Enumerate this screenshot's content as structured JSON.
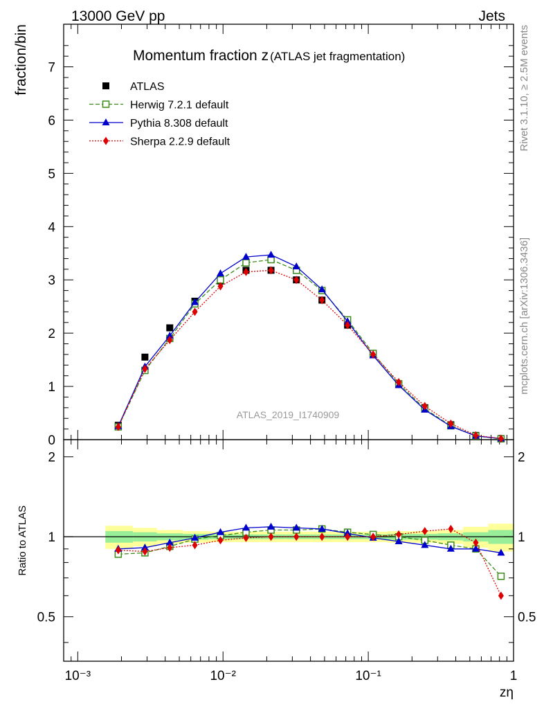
{
  "header": {
    "left": "13000 GeV pp",
    "right": "Jets"
  },
  "side_labels": {
    "rivet": "Rivet 3.1.10, ≥ 2.5M events",
    "mcplots": "mcplots.cern.ch [arXiv:1306.3436]"
  },
  "chart_data": [
    {
      "type": "scatter",
      "title_main": "Momentum fraction z",
      "title_sub": "(ATLAS jet fragmentation)",
      "ylabel": "fraction/bin",
      "analysis_label": "ATLAS_2019_I1740909",
      "xscale": "log",
      "xlim": [
        0.0008,
        1.0
      ],
      "ylim": [
        0,
        7.8
      ],
      "yticks": [
        0,
        1,
        2,
        3,
        4,
        5,
        6,
        7
      ],
      "legend_position": "top-left",
      "x": [
        0.0019,
        0.0029,
        0.0043,
        0.0064,
        0.0096,
        0.0144,
        0.0214,
        0.032,
        0.048,
        0.072,
        0.108,
        0.162,
        0.245,
        0.37,
        0.55,
        0.82
      ],
      "series": [
        {
          "name": "ATLAS",
          "color": "#000000",
          "marker": "square",
          "line": "none",
          "values": [
            0.27,
            1.55,
            2.1,
            2.6,
            2.98,
            3.18,
            3.18,
            3.0,
            2.62,
            2.15,
            1.6,
            1.05,
            0.6,
            0.28,
            0.08,
            0.02
          ]
        },
        {
          "name": "Herwig 7.2.1 default",
          "color": "#3a8a1a",
          "marker": "open-square",
          "line": "dashed",
          "values": [
            0.24,
            1.3,
            1.9,
            2.55,
            3.0,
            3.32,
            3.38,
            3.18,
            2.8,
            2.25,
            1.62,
            1.05,
            0.58,
            0.26,
            0.07,
            0.015
          ]
        },
        {
          "name": "Pythia 8.308 default",
          "color": "#0000cc",
          "marker": "triangle",
          "line": "solid",
          "values": [
            0.25,
            1.37,
            1.95,
            2.58,
            3.12,
            3.43,
            3.47,
            3.25,
            2.82,
            2.22,
            1.58,
            1.02,
            0.56,
            0.25,
            0.07,
            0.02
          ]
        },
        {
          "name": "Sherpa 2.2.9 default",
          "color": "#dd0000",
          "marker": "diamond",
          "line": "dotted",
          "values": [
            0.24,
            1.33,
            1.87,
            2.4,
            2.88,
            3.15,
            3.18,
            3.0,
            2.62,
            2.15,
            1.6,
            1.08,
            0.63,
            0.3,
            0.08,
            0.02
          ]
        }
      ]
    },
    {
      "type": "scatter",
      "ylabel": "Ratio to ATLAS",
      "xlabel": "zη",
      "xscale": "log",
      "xlim": [
        0.0008,
        1.0
      ],
      "ylim": [
        0.34,
        2.32
      ],
      "yticks": [
        0.5,
        1,
        2
      ],
      "xticks": [
        "10⁻³",
        "10⁻²",
        "10⁻¹",
        "1"
      ],
      "band_edges": [
        0.00155,
        0.0024,
        0.0035,
        0.0053,
        0.008,
        0.012,
        0.018,
        0.027,
        0.04,
        0.06,
        0.09,
        0.135,
        0.2,
        0.3,
        0.45,
        0.67,
        1.0
      ],
      "band_stat_halfwidth": [
        0.05,
        0.04,
        0.03,
        0.025,
        0.02,
        0.02,
        0.02,
        0.02,
        0.02,
        0.02,
        0.02,
        0.025,
        0.025,
        0.03,
        0.04,
        0.06
      ],
      "band_total_halfwidth": [
        0.1,
        0.08,
        0.06,
        0.05,
        0.045,
        0.045,
        0.045,
        0.045,
        0.045,
        0.045,
        0.045,
        0.05,
        0.05,
        0.06,
        0.09,
        0.12
      ],
      "x": [
        0.0019,
        0.0029,
        0.0043,
        0.0064,
        0.0096,
        0.0144,
        0.0214,
        0.032,
        0.048,
        0.072,
        0.108,
        0.162,
        0.245,
        0.37,
        0.55,
        0.82
      ],
      "series": [
        {
          "name": "Herwig 7.2.1 default",
          "color": "#3a8a1a",
          "marker": "open-square",
          "line": "dashed",
          "values": [
            0.86,
            0.87,
            0.92,
            0.98,
            1.01,
            1.04,
            1.06,
            1.06,
            1.07,
            1.04,
            1.02,
            1.0,
            0.97,
            0.93,
            0.9,
            0.71
          ]
        },
        {
          "name": "Pythia 8.308 default",
          "color": "#0000cc",
          "marker": "triangle",
          "line": "solid",
          "values": [
            0.9,
            0.91,
            0.95,
            0.99,
            1.04,
            1.08,
            1.09,
            1.08,
            1.07,
            1.03,
            0.99,
            0.96,
            0.93,
            0.9,
            0.9,
            0.87
          ]
        },
        {
          "name": "Sherpa 2.2.9 default",
          "color": "#dd0000",
          "marker": "diamond",
          "line": "dotted",
          "values": [
            0.89,
            0.88,
            0.91,
            0.93,
            0.97,
            0.99,
            1.0,
            1.0,
            1.0,
            1.0,
            1.0,
            1.02,
            1.05,
            1.07,
            0.95,
            0.6
          ]
        }
      ]
    }
  ]
}
